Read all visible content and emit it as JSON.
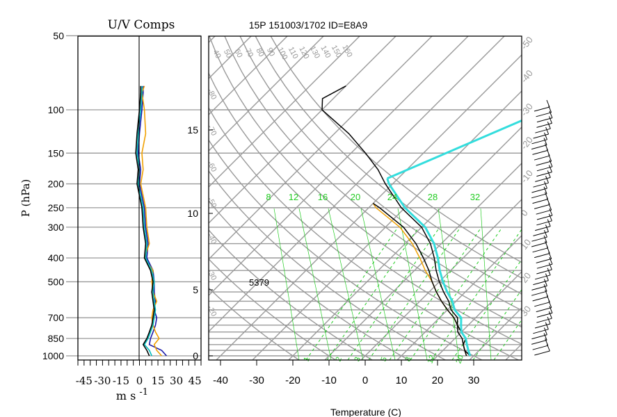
{
  "header": {
    "left_title": "U/V Comps",
    "main_title": "15P 151003/1702 ID=E8A9"
  },
  "chart_data": [
    {
      "type": "line",
      "title": "U/V Comps",
      "xlabel": "m s ⁻¹",
      "ylabel": "P (hPa)",
      "y_scale": "log-pressure",
      "ylim": [
        1000,
        50
      ],
      "xlim": [
        -50,
        50
      ],
      "pressure_ticks": [
        1000,
        850,
        700,
        500,
        400,
        300,
        250,
        200,
        150,
        100,
        50
      ],
      "x_ticks": [
        -45,
        -30,
        -15,
        0,
        15,
        30,
        45
      ],
      "series": [
        {
          "color": "#1a1aaa",
          "pressure": [
            1000,
            950,
            900,
            850,
            800,
            750,
            700,
            650,
            600,
            550,
            500,
            450,
            400,
            350,
            300,
            250,
            200,
            175,
            150,
            125,
            100,
            85,
            80
          ],
          "values": [
            22,
            18,
            8,
            9,
            11,
            13,
            14,
            12,
            13,
            12,
            12,
            11,
            6,
            7,
            5,
            4,
            0,
            1,
            -1,
            0,
            2,
            3,
            3
          ]
        },
        {
          "color": "#f0a000",
          "pressure": [
            1000,
            950,
            900,
            850,
            800,
            750,
            700,
            650,
            600,
            550,
            500,
            450,
            400,
            350,
            300,
            250,
            200,
            175,
            150,
            125,
            100,
            85,
            80
          ],
          "values": [
            18,
            14,
            12,
            16,
            13,
            11,
            10,
            11,
            14,
            11,
            10,
            11,
            4,
            8,
            6,
            5,
            1,
            3,
            2,
            5,
            4,
            2,
            4
          ]
        },
        {
          "color": "#00bbbb",
          "pressure": [
            1000,
            950,
            900,
            850,
            800,
            750,
            700,
            650,
            600,
            550,
            500,
            450,
            400,
            350,
            300,
            250,
            200,
            175,
            150,
            125,
            100,
            85,
            80
          ],
          "values": [
            10,
            8,
            4,
            7,
            9,
            11,
            12,
            13,
            12,
            11,
            12,
            10,
            5,
            6,
            4,
            3,
            -1,
            0,
            -2,
            -1,
            1,
            2,
            2
          ]
        },
        {
          "color": "#000000",
          "pressure": [
            1000,
            950,
            900,
            850,
            800,
            750,
            700,
            650,
            600,
            550,
            500,
            450,
            400,
            350,
            300,
            250,
            200,
            175,
            150,
            125,
            100,
            85,
            80
          ],
          "values": [
            8,
            6,
            3,
            6,
            8,
            10,
            11,
            12,
            11,
            10,
            11,
            9,
            4,
            5,
            3,
            2,
            -2,
            -1,
            -3,
            -2,
            0,
            1,
            1
          ]
        }
      ]
    },
    {
      "type": "line",
      "title": "15P 151003/1702 ID=E8A9",
      "xlabel": "Temperature (C)",
      "y_scale": "log-pressure",
      "ylim": [
        1000,
        50
      ],
      "xlim": [
        -40,
        40
      ],
      "x_ticks": [
        -40,
        -30,
        -20,
        -10,
        0,
        10,
        20,
        30
      ],
      "height_ticks_km": [
        0,
        5,
        10,
        15
      ],
      "annotation": "5379",
      "mixing_ratio_labels": [
        "8",
        "12",
        "16",
        "20",
        "24",
        "28",
        "32"
      ],
      "dry_adiabat_labels": [
        "40",
        "50",
        "60",
        "70",
        "80",
        "90",
        "100",
        "110",
        "120",
        "130",
        "140",
        "150",
        "160"
      ],
      "isotherm_labels": [
        "-50",
        "-40",
        "-30",
        "-20",
        "-10",
        "0",
        "10",
        "20",
        "30"
      ],
      "series": [
        {
          "color": "#f0a000",
          "pressure": [
            1000,
            950,
            900,
            850,
            800,
            750,
            700,
            650,
            600,
            550,
            500,
            450,
            400,
            350,
            300,
            250,
            240
          ],
          "values": [
            28,
            26,
            24,
            23,
            20,
            17,
            14,
            10,
            6,
            2,
            -2,
            -7,
            -12,
            -18,
            -26,
            -38,
            -40
          ]
        },
        {
          "color": "#000000",
          "pressure": [
            1000,
            950,
            900,
            850,
            800,
            750,
            700,
            650,
            600,
            550,
            500,
            450,
            400,
            350,
            300,
            250,
            240
          ],
          "values": [
            28,
            26,
            24,
            23,
            20,
            17,
            14,
            10,
            6,
            2,
            -2,
            -6,
            -11,
            -17,
            -25,
            -37,
            -40
          ]
        },
        {
          "color": "#000000",
          "pressure": [
            1000,
            950,
            900,
            850,
            800,
            750,
            700,
            650,
            600,
            550,
            500,
            450,
            400,
            350,
            300,
            250,
            200,
            175,
            150,
            125,
            110,
            100,
            90,
            80
          ],
          "values": [
            29,
            26,
            24,
            22,
            19,
            17,
            15,
            11,
            8,
            4,
            0,
            -4,
            -8,
            -13,
            -20,
            -31,
            -42,
            -48,
            -56,
            -66,
            -74,
            -80,
            -83,
            -80
          ]
        },
        {
          "color": "#33dddd",
          "pressure": [
            1000,
            950,
            900,
            850,
            800,
            750,
            700,
            650,
            600,
            550,
            500,
            450,
            400,
            350,
            300,
            250,
            200,
            190
          ],
          "values": [
            29,
            27,
            25,
            23,
            20,
            18,
            16,
            12,
            9,
            5,
            1,
            -3,
            -7,
            -12,
            -19,
            -30,
            -41,
            -43
          ]
        },
        {
          "color": "#33dddd",
          "pressure": [
            190,
            72
          ],
          "values": [
            -43,
            -5
          ]
        }
      ]
    }
  ],
  "uv_axis": {
    "xlabel": "m s",
    "xlabel_exp": "-1",
    "ylabel": "P (hPa)",
    "ticks": [
      "-45",
      "-30",
      "-15",
      "0",
      "15",
      "30",
      "45"
    ]
  },
  "pressure_labels": [
    "1000",
    "850",
    "700",
    "500",
    "400",
    "300",
    "250",
    "200",
    "150",
    "100",
    "50"
  ],
  "skewt_axis": {
    "xlabel": "Temperature (C)",
    "ticks": [
      "-40",
      "-30",
      "-20",
      "-10",
      "0",
      "10",
      "20",
      "30"
    ],
    "height_labels": [
      "0",
      "5",
      "10",
      "15"
    ],
    "annotation": "5379"
  },
  "mixing_labels": [
    "8",
    "12",
    "16",
    "20",
    "24",
    "28",
    "32"
  ],
  "mixing_bottom_labels": [
    "1",
    "2",
    "3",
    "5",
    "8",
    "12",
    "20"
  ],
  "adiabat_labels": [
    "40",
    "50",
    "60",
    "70",
    "80",
    "90",
    "100",
    "110",
    "120",
    "130",
    "140",
    "150",
    "160"
  ],
  "isotherm_labels": [
    "-50",
    "-40",
    "-30",
    "-20",
    "-10",
    "0",
    "10",
    "20",
    "30"
  ],
  "colors": {
    "grid": "#999999",
    "mixing": "#22cc22",
    "parcel": "#33dddd",
    "orange": "#f0a000",
    "blue": "#1a1aaa"
  }
}
